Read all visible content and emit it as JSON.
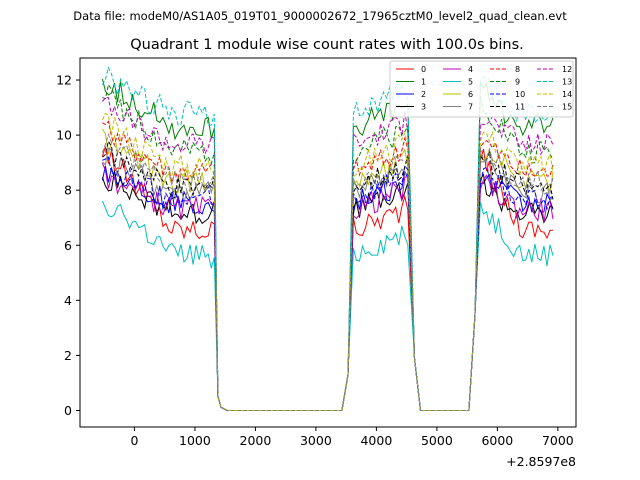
{
  "suptitle": "Data file: modeM0/AS1A05_019T01_9000002672_17965cztM0_level2_quad_clean.evt",
  "chart_data": {
    "type": "line",
    "title": "Quadrant 1 module wise count rates with 100.0s bins.",
    "xlabel": "",
    "ylabel": "",
    "x_offset_label": "+2.8597e8",
    "xlim": [
      -900,
      7300
    ],
    "ylim": [
      -0.6,
      12.8
    ],
    "xticks": [
      0,
      1000,
      2000,
      3000,
      4000,
      5000,
      6000,
      7000
    ],
    "yticks": [
      0,
      2,
      4,
      6,
      8,
      10,
      12
    ],
    "grid": false,
    "legend_placement": "top-right",
    "legend_columns": 4,
    "series": [
      {
        "name": "0",
        "color": "#ff0000",
        "dash": false,
        "level": 6.6,
        "start": 9.6
      },
      {
        "name": "1",
        "color": "#008000",
        "dash": false,
        "level": 10.3,
        "start": 12.0
      },
      {
        "name": "2",
        "color": "#0000ff",
        "dash": false,
        "level": 7.5,
        "start": 8.8
      },
      {
        "name": "3",
        "color": "#000000",
        "dash": false,
        "level": 7.2,
        "start": 8.5
      },
      {
        "name": "4",
        "color": "#bf00bf",
        "dash": false,
        "level": 7.3,
        "start": 8.6
      },
      {
        "name": "5",
        "color": "#00bfbf",
        "dash": false,
        "level": 5.6,
        "start": 7.7
      },
      {
        "name": "6",
        "color": "#bfbf00",
        "dash": false,
        "level": 8.3,
        "start": 9.9
      },
      {
        "name": "7",
        "color": "#808080",
        "dash": false,
        "level": 7.9,
        "start": 9.2
      },
      {
        "name": "8",
        "color": "#ff0000",
        "dash": true,
        "level": 8.7,
        "start": 10.2
      },
      {
        "name": "9",
        "color": "#008000",
        "dash": true,
        "level": 9.4,
        "start": 11.6
      },
      {
        "name": "10",
        "color": "#0000ff",
        "dash": true,
        "level": 7.7,
        "start": 8.9
      },
      {
        "name": "11",
        "color": "#000000",
        "dash": true,
        "level": 8.1,
        "start": 9.5
      },
      {
        "name": "12",
        "color": "#bf00bf",
        "dash": true,
        "level": 9.7,
        "start": 11.1
      },
      {
        "name": "13",
        "color": "#00bfbf",
        "dash": true,
        "level": 10.8,
        "start": 12.2
      },
      {
        "name": "14",
        "color": "#bfbf00",
        "dash": true,
        "level": 8.9,
        "start": 10.5
      },
      {
        "name": "15",
        "color": "#808080",
        "dash": true,
        "level": 8.3,
        "start": 9.8
      }
    ]
  }
}
